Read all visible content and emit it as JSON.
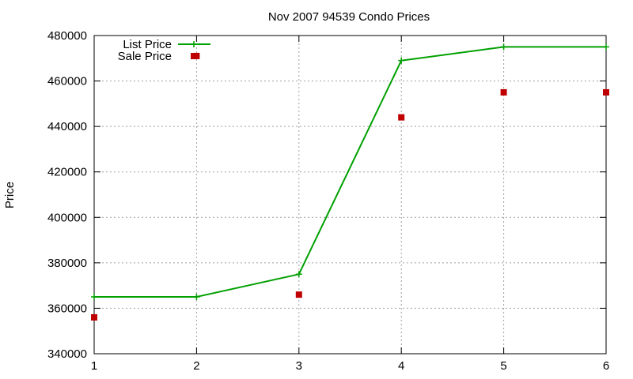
{
  "chart_data": {
    "type": "line",
    "title": "Nov 2007 94539 Condo Prices",
    "xlabel": "",
    "ylabel": "Price",
    "x": [
      1,
      2,
      3,
      4,
      5,
      6
    ],
    "xlim": [
      1,
      6
    ],
    "ylim": [
      340000,
      480000
    ],
    "x_ticks": [
      "1",
      "2",
      "3",
      "4",
      "5",
      "6"
    ],
    "y_ticks": [
      "340000",
      "360000",
      "380000",
      "400000",
      "420000",
      "440000",
      "460000",
      "480000"
    ],
    "grid": true,
    "legend_position": "top-left",
    "series": [
      {
        "name": "List Price",
        "style": "line-with-plus-markers",
        "color": "#00a000",
        "values": [
          365000,
          365000,
          375000,
          469000,
          475000,
          475000
        ]
      },
      {
        "name": "Sale Price",
        "style": "square-markers",
        "color": "#c00000",
        "values": [
          356000,
          471000,
          366000,
          444000,
          455000,
          455000
        ]
      }
    ]
  }
}
